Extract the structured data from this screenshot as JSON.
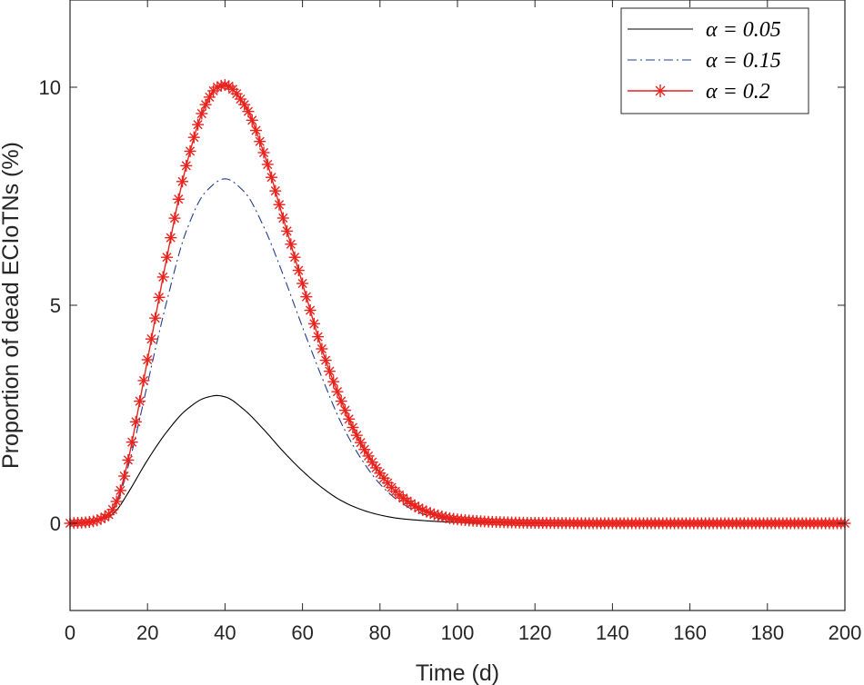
{
  "chart_data": {
    "type": "line",
    "title": "",
    "xlabel": "Time (d)",
    "ylabel": "Proportion of dead ECIoTNs (%)",
    "xlim": [
      0,
      200
    ],
    "ylim": [
      -2,
      12
    ],
    "xticks": [
      0,
      20,
      40,
      60,
      80,
      100,
      120,
      140,
      160,
      180,
      200
    ],
    "xtick_labels": [
      "0",
      "20",
      "40",
      "60",
      "80",
      "100",
      "120",
      "140",
      "160",
      "180",
      "200"
    ],
    "yticks": [
      0,
      5,
      10
    ],
    "ytick_labels": [
      "0",
      "5",
      "10"
    ],
    "grid": false,
    "legend_position": "top-right",
    "series": [
      {
        "name": "α = 0.05",
        "color": "#000000",
        "style": "solid",
        "marker": "none",
        "x": [
          0,
          5,
          10,
          12,
          15,
          20,
          25,
          30,
          35,
          38,
          40,
          45,
          50,
          55,
          60,
          65,
          70,
          75,
          80,
          85,
          90,
          95,
          100,
          110,
          120,
          140,
          160,
          180,
          200
        ],
        "y": [
          0,
          0.03,
          0.15,
          0.3,
          0.7,
          1.45,
          2.1,
          2.6,
          2.88,
          2.93,
          2.9,
          2.6,
          2.15,
          1.65,
          1.2,
          0.82,
          0.52,
          0.32,
          0.19,
          0.11,
          0.07,
          0.04,
          0.02,
          0.01,
          0,
          0,
          0,
          0,
          0
        ]
      },
      {
        "name": "α = 0.15",
        "color": "#1f3c88",
        "style": "dashdot",
        "marker": "none",
        "x": [
          0,
          5,
          10,
          12,
          15,
          18,
          20,
          25,
          30,
          35,
          40,
          45,
          50,
          55,
          60,
          65,
          70,
          75,
          80,
          85,
          90,
          95,
          100,
          110,
          120,
          140,
          160,
          180,
          200
        ],
        "y": [
          0,
          0.03,
          0.2,
          0.45,
          1.3,
          2.4,
          3.2,
          5.1,
          6.7,
          7.6,
          7.9,
          7.6,
          6.8,
          5.7,
          4.5,
          3.35,
          2.3,
          1.5,
          0.9,
          0.5,
          0.25,
          0.12,
          0.06,
          0.02,
          0.01,
          0,
          0,
          0,
          0
        ]
      },
      {
        "name": "α = 0.2",
        "color": "#e8231e",
        "style": "solid",
        "marker": "asterisk",
        "x": [
          0,
          5,
          10,
          12,
          15,
          18,
          20,
          25,
          30,
          35,
          38,
          40,
          45,
          50,
          55,
          60,
          65,
          70,
          75,
          80,
          85,
          90,
          95,
          100,
          110,
          120,
          140,
          160,
          180,
          200
        ],
        "y": [
          0,
          0.03,
          0.2,
          0.5,
          1.45,
          2.8,
          3.75,
          6.1,
          8.2,
          9.6,
          10.0,
          10.05,
          9.6,
          8.5,
          7.0,
          5.5,
          4.0,
          2.8,
          1.85,
          1.15,
          0.65,
          0.35,
          0.18,
          0.09,
          0.03,
          0.01,
          0,
          0,
          0,
          0
        ]
      }
    ]
  }
}
